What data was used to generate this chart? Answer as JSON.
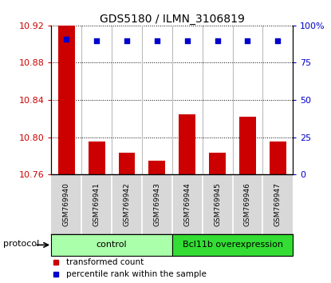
{
  "title": "GDS5180 / ILMN_3106819",
  "samples": [
    "GSM769940",
    "GSM769941",
    "GSM769942",
    "GSM769943",
    "GSM769944",
    "GSM769945",
    "GSM769946",
    "GSM769947"
  ],
  "transformed_counts": [
    10.92,
    10.795,
    10.783,
    10.775,
    10.825,
    10.783,
    10.822,
    10.795
  ],
  "percentile_ranks": [
    91,
    90,
    90,
    90,
    90,
    90,
    90,
    90
  ],
  "ylim_left": [
    10.76,
    10.92
  ],
  "yticks_left": [
    10.76,
    10.8,
    10.84,
    10.88,
    10.92
  ],
  "ytick_labels_left": [
    "10.76",
    "10.80",
    "10.84",
    "10.88",
    "10.92"
  ],
  "ylim_right": [
    0,
    100
  ],
  "yticks_right": [
    0,
    25,
    50,
    75,
    100
  ],
  "ytick_labels_right": [
    "0",
    "25",
    "50",
    "75",
    "100%"
  ],
  "bar_color": "#cc0000",
  "dot_color": "#0000cc",
  "bar_bottom": 10.76,
  "groups": [
    {
      "label": "control",
      "start": 0,
      "end": 3,
      "color": "#aaffaa"
    },
    {
      "label": "Bcl11b overexpression",
      "start": 4,
      "end": 7,
      "color": "#33dd33"
    }
  ],
  "protocol_label": "protocol",
  "legend_items": [
    {
      "color": "#cc0000",
      "label": "transformed count"
    },
    {
      "color": "#0000cc",
      "label": "percentile rank within the sample"
    }
  ],
  "sample_bg_color": "#d8d8d8",
  "plot_bg_color": "#ffffff",
  "title_fontsize": 10,
  "tick_label_color_left": "#cc0000",
  "tick_label_color_right": "#0000cc"
}
